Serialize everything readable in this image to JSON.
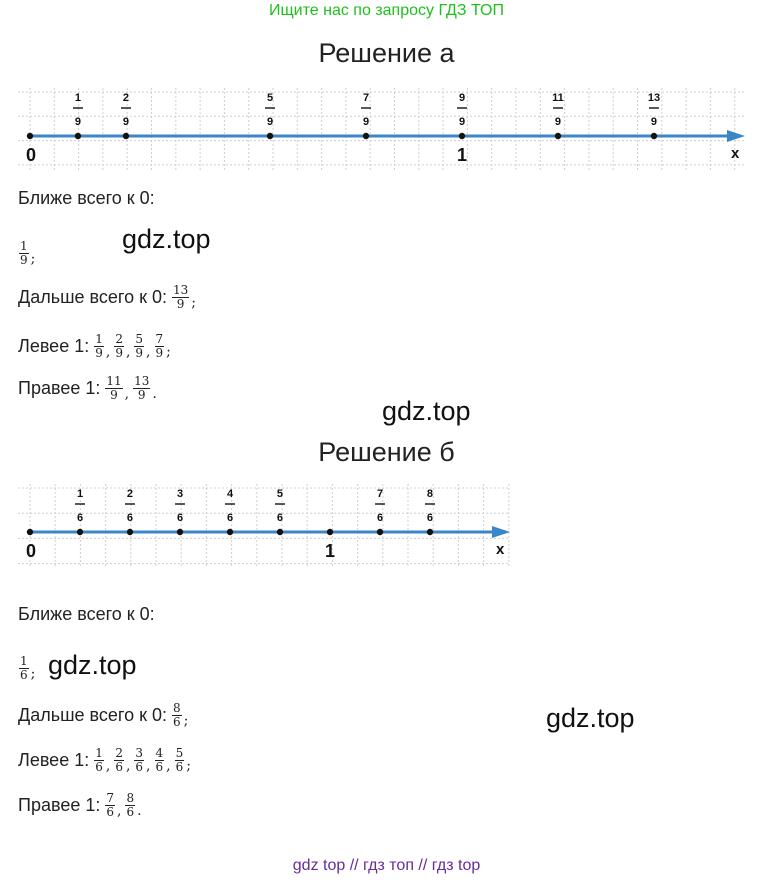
{
  "banner": "Ищите нас по запросу ГДЗ ТОП",
  "watermark": "gdz.top",
  "footer": "gdz top  //  гдз топ  //  гдз top",
  "colors": {
    "axis": "#3a86c8",
    "banner": "#1ec01e",
    "footer": "#6a2a9a"
  },
  "part_a": {
    "title": "Решение а",
    "number_line": {
      "zero_label": "0",
      "one_label": "1",
      "axis_label": "x",
      "points": [
        {
          "num": "1",
          "den": "9",
          "value": 0.1111
        },
        {
          "num": "2",
          "den": "9",
          "value": 0.2222
        },
        {
          "num": "5",
          "den": "9",
          "value": 0.5556
        },
        {
          "num": "7",
          "den": "9",
          "value": 0.7778
        },
        {
          "num": "9",
          "den": "9",
          "value": 1.0
        },
        {
          "num": "11",
          "den": "9",
          "value": 1.2222
        },
        {
          "num": "13",
          "den": "9",
          "value": 1.4444
        }
      ]
    },
    "closest_label": "Ближе всего к 0:",
    "closest": [
      {
        "num": "1",
        "den": "9"
      }
    ],
    "closest_end": ";",
    "farthest_label": "Дальше всего к 0:",
    "farthest": [
      {
        "num": "13",
        "den": "9"
      }
    ],
    "farthest_end": ";",
    "left_label": "Левее 1:",
    "left": [
      {
        "num": "1",
        "den": "9"
      },
      {
        "num": "2",
        "den": "9"
      },
      {
        "num": "5",
        "den": "9"
      },
      {
        "num": "7",
        "den": "9"
      }
    ],
    "left_end": ";",
    "right_label": "Правее 1:",
    "right": [
      {
        "num": "11",
        "den": "9"
      },
      {
        "num": "13",
        "den": "9"
      }
    ],
    "right_end": "."
  },
  "part_b": {
    "title": "Решение б",
    "number_line": {
      "zero_label": "0",
      "one_label": "1",
      "axis_label": "x",
      "points": [
        {
          "num": "1",
          "den": "6",
          "value": 0.1667
        },
        {
          "num": "2",
          "den": "6",
          "value": 0.3333
        },
        {
          "num": "3",
          "den": "6",
          "value": 0.5
        },
        {
          "num": "4",
          "den": "6",
          "value": 0.6667
        },
        {
          "num": "5",
          "den": "6",
          "value": 0.8333
        },
        {
          "num": "7",
          "den": "6",
          "value": 1.1667
        },
        {
          "num": "8",
          "den": "6",
          "value": 1.3333
        }
      ]
    },
    "closest_label": "Ближе всего к 0:",
    "closest": [
      {
        "num": "1",
        "den": "6"
      }
    ],
    "closest_end": ";",
    "farthest_label": "Дальше всего к 0:",
    "farthest": [
      {
        "num": "8",
        "den": "6"
      }
    ],
    "farthest_end": ";",
    "left_label": "Левее 1:",
    "left": [
      {
        "num": "1",
        "den": "6"
      },
      {
        "num": "2",
        "den": "6"
      },
      {
        "num": "3",
        "den": "6"
      },
      {
        "num": "4",
        "den": "6"
      },
      {
        "num": "5",
        "den": "6"
      }
    ],
    "left_end": ";",
    "right_label": "Правее 1:",
    "right": [
      {
        "num": "7",
        "den": "6"
      },
      {
        "num": "8",
        "den": "6"
      }
    ],
    "right_end": "."
  }
}
